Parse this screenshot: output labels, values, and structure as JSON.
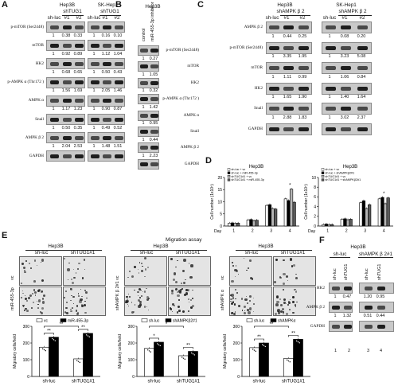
{
  "panels": {
    "A": {
      "letter": "A",
      "groups": [
        {
          "cell": "Hep3B",
          "treat": "shTUG1",
          "lanes": [
            "sh-luc",
            "#1",
            "#2"
          ]
        },
        {
          "cell": "SK-Hep1",
          "treat": "shTUG1",
          "lanes": [
            "sh-luc",
            "#1",
            "#2"
          ]
        }
      ],
      "rows": [
        {
          "label": "p-mTOR (Ser2448)",
          "vals": [
            "1",
            "0.38",
            "0.33",
            "1",
            "0.16",
            "0.10"
          ]
        },
        {
          "label": "mTOR",
          "vals": [
            "1",
            "0.92",
            "0.89",
            "1",
            "1.12",
            "1.04"
          ]
        },
        {
          "label": "HK2",
          "vals": [
            "1",
            "0.68",
            "0.65",
            "1",
            "0.50",
            "0.43"
          ]
        },
        {
          "label": "p-AMPK α (Thr172 )",
          "vals": [
            "1",
            "1.56",
            "1.69",
            "1",
            "2.05",
            "1.46"
          ]
        },
        {
          "label": "AMPK α",
          "vals": [
            "1",
            "1.17",
            "1.23",
            "1",
            "0.90",
            "0.87"
          ]
        },
        {
          "label": "Snail",
          "vals": [
            "1",
            "0.50",
            "0.35",
            "1",
            "0.49",
            "0.52"
          ]
        },
        {
          "label": "AMPK β 2",
          "vals": [
            "1",
            "2.04",
            "2.53",
            "1",
            "1.48",
            "1.51"
          ]
        },
        {
          "label": "GAPDH",
          "vals": []
        }
      ]
    },
    "B": {
      "letter": "B",
      "cell": "Hep3B",
      "lanes": [
        "control",
        "miR-455-3p inhibitor"
      ],
      "rows": [
        {
          "label": "p-mTOR (Ser2448)",
          "vals": [
            "1",
            "0.27"
          ]
        },
        {
          "label": "mTOR",
          "vals": [
            "1",
            "1.05"
          ]
        },
        {
          "label": "HK2",
          "vals": [
            "1",
            "0.32"
          ]
        },
        {
          "label": "p-AMPK α (Thr172 )",
          "vals": [
            "1",
            "1.42"
          ]
        },
        {
          "label": "AMPK α",
          "vals": [
            "1",
            "0.95"
          ]
        },
        {
          "label": "Snail",
          "vals": [
            "1",
            "0.44"
          ]
        },
        {
          "label": "AMPK β 2",
          "vals": [
            "1",
            "2.23"
          ]
        },
        {
          "label": "GAPDH",
          "vals": []
        }
      ]
    },
    "C": {
      "letter": "C",
      "groups": [
        {
          "cell": "Hep3B",
          "treat": "shAMPK β 2",
          "lanes": [
            "sh-luc",
            "#1",
            "#2"
          ]
        },
        {
          "cell": "SK-Hep1",
          "treat": "shAMPK β 2",
          "lanes": [
            "sh-luc",
            "#1",
            "#2"
          ]
        }
      ],
      "rows": [
        {
          "label": "AMPK β 2",
          "vals": [
            "1",
            "0.44",
            "0.25",
            "1",
            "0.08",
            "0.20"
          ]
        },
        {
          "label": "p-mTOR (Ser2448)",
          "vals": [
            "1",
            "3.35",
            "1.95",
            "1",
            "3.23",
            "5.08"
          ]
        },
        {
          "label": "mTOR",
          "vals": [
            "1",
            "1.11",
            "0.99",
            "1",
            "1.06",
            "0.84"
          ]
        },
        {
          "label": "HK2",
          "vals": [
            "1",
            "1.65",
            "1.90",
            "1",
            "1.40",
            "1.64"
          ]
        },
        {
          "label": "Snail",
          "vals": [
            "1",
            "2.88",
            "1.83",
            "1",
            "3.02",
            "2.37"
          ]
        },
        {
          "label": "GAPDH",
          "vals": []
        }
      ]
    },
    "D": {
      "letter": "D",
      "charts": [
        {
          "title": "Hep3B",
          "ylabel": "Cell number (1x10⁵)",
          "xlabel": "Day",
          "categories": [
            "1",
            "2",
            "3",
            "4"
          ],
          "yticks": [
            "0",
            "5",
            "10",
            "15",
            "20"
          ],
          "ylim": [
            0,
            20
          ],
          "series": [
            {
              "name": "sh-luc + vc",
              "values": [
                1.2,
                2.5,
                8.5,
                11.2
              ],
              "color": "#ffffff"
            },
            {
              "name": "sh-luc + miR-455-3p",
              "values": [
                1.3,
                2.7,
                8.8,
                10.5
              ],
              "color": "#000000"
            },
            {
              "name": "shTUG1#1 + vc",
              "values": [
                1.1,
                2.2,
                7.2,
                15.2
              ],
              "color": "#b5b5b5"
            },
            {
              "name": "shTUG1#1 + miR-455-3p",
              "values": [
                1.2,
                2.4,
                7.0,
                9.8
              ],
              "color": "#5a5a5a"
            }
          ]
        },
        {
          "title": "Hep3B",
          "ylabel": "Cell number (1x10⁵)",
          "xlabel": "Day",
          "categories": [
            "1",
            "2",
            "3",
            "4"
          ],
          "yticks": [
            "0",
            "2",
            "4",
            "6",
            "8",
            "10"
          ],
          "ylim": [
            0,
            10
          ],
          "series": [
            {
              "name": "sh-luc + vc",
              "values": [
                0.3,
                1.4,
                4.8,
                5.6
              ],
              "color": "#ffffff"
            },
            {
              "name": "sh-luc + shAMPKβ2#1",
              "values": [
                0.4,
                1.5,
                5.2,
                5.9
              ],
              "color": "#000000"
            },
            {
              "name": "shTUG1#1 + vc",
              "values": [
                0.3,
                1.3,
                3.6,
                4.6
              ],
              "color": "#b5b5b5"
            },
            {
              "name": "shTUG1#1 + shAMPKβ2#1",
              "values": [
                0.3,
                1.4,
                4.4,
                5.8
              ],
              "color": "#5a5a5a"
            }
          ]
        }
      ]
    },
    "E": {
      "letter": "E",
      "title": "Migration assay",
      "assays": [
        {
          "cell": "Hep3B",
          "cols": [
            "sh-luc",
            "shTUG1#1"
          ],
          "rows": [
            "vc",
            "miR-455-3p"
          ],
          "ylabel": "Migratory cells/field",
          "yticks": [
            "0",
            "100",
            "200",
            "300"
          ],
          "ylim": [
            0,
            300
          ],
          "legend": [
            "vc",
            "miR-455-3p"
          ],
          "categories": [
            "sh-luc",
            "shTUG1#1"
          ],
          "series": [
            {
              "name": "vc",
              "values": [
                175,
                105
              ],
              "color": "#ffffff"
            },
            {
              "name": "miR-455-3p",
              "values": [
                235,
                258
              ],
              "color": "#000000"
            }
          ],
          "sig": [
            "**",
            "**",
            "**"
          ]
        },
        {
          "cell": "Hep3B",
          "cols": [
            "sh-luc",
            "shTUG1#1"
          ],
          "rows": [
            "vc",
            "shAMPK β 2#1"
          ],
          "ylabel": "Migratory cells/field",
          "yticks": [
            "0",
            "100",
            "200",
            "300"
          ],
          "ylim": [
            0,
            300
          ],
          "legend": [
            "sh-luc",
            "shAMPKβ2#1"
          ],
          "categories": [
            "sh-luc",
            "shTUG1#1"
          ],
          "series": [
            {
              "name": "sh-luc",
              "values": [
                168,
                124
              ],
              "color": "#ffffff"
            },
            {
              "name": "shAMPKβ2#1",
              "values": [
                205,
                150
              ],
              "color": "#000000"
            }
          ],
          "sig": [
            "*",
            "**",
            "*"
          ]
        },
        {
          "cell": "Hep3B",
          "cols": [
            "sh-luc",
            "shTUG1#1"
          ],
          "rows": [
            "vc",
            "shAMPK α"
          ],
          "ylabel": "Migratory cells/field",
          "yticks": [
            "0",
            "100",
            "200",
            "300"
          ],
          "ylim": [
            0,
            300
          ],
          "legend": [
            "sh-luc",
            "shAMPKα"
          ],
          "categories": [
            "sh-luc",
            "shTUG1#1"
          ],
          "series": [
            {
              "name": "sh-luc",
              "values": [
                172,
                108
              ],
              "color": "#ffffff"
            },
            {
              "name": "shAMPKα",
              "values": [
                200,
                222
              ],
              "color": "#000000"
            }
          ],
          "sig": [
            "**",
            "**",
            "**"
          ]
        }
      ]
    },
    "F": {
      "letter": "F",
      "cell": "Hep3B",
      "groups": [
        {
          "treat": "sh-luc",
          "lanes": [
            "sh-luc",
            "shTUG1"
          ]
        },
        {
          "treat": "shAMPK β 2#1",
          "lanes": [
            "sh-luc",
            "shTUG1"
          ]
        }
      ],
      "rows": [
        {
          "label": "HK2",
          "vals": [
            "1",
            "0.47",
            "1.20",
            "0.95"
          ]
        },
        {
          "label": "AMPK β 2",
          "vals": [
            "1",
            "1.32",
            "0.51",
            "0.44"
          ]
        },
        {
          "label": "GAPDH",
          "vals": []
        }
      ],
      "lane_numbers": [
        "1",
        "2",
        "3",
        "4"
      ]
    }
  },
  "chart_data": [
    {
      "type": "bar",
      "title": "Hep3B",
      "xlabel": "Day",
      "ylabel": "Cell number (1x10⁵)",
      "categories": [
        "1",
        "2",
        "3",
        "4"
      ],
      "ylim": [
        0,
        20
      ],
      "series": [
        {
          "name": "sh-luc + vc",
          "values": [
            1.2,
            2.5,
            8.5,
            11.2
          ]
        },
        {
          "name": "sh-luc + miR-455-3p",
          "values": [
            1.3,
            2.7,
            8.8,
            10.5
          ]
        },
        {
          "name": "shTUG1#1 + vc",
          "values": [
            1.1,
            2.2,
            7.2,
            15.2
          ]
        },
        {
          "name": "shTUG1#1 + miR-455-3p",
          "values": [
            1.2,
            2.4,
            7.0,
            9.8
          ]
        }
      ]
    },
    {
      "type": "bar",
      "title": "Hep3B",
      "xlabel": "Day",
      "ylabel": "Cell number (1x10⁵)",
      "categories": [
        "1",
        "2",
        "3",
        "4"
      ],
      "ylim": [
        0,
        10
      ],
      "series": [
        {
          "name": "sh-luc + vc",
          "values": [
            0.3,
            1.4,
            4.8,
            5.6
          ]
        },
        {
          "name": "sh-luc + shAMPKβ2#1",
          "values": [
            0.4,
            1.5,
            5.2,
            5.9
          ]
        },
        {
          "name": "shTUG1#1 + vc",
          "values": [
            0.3,
            1.3,
            3.6,
            4.6
          ]
        },
        {
          "name": "shTUG1#1 + shAMPKβ2#1",
          "values": [
            0.3,
            1.4,
            4.4,
            5.8
          ]
        }
      ]
    },
    {
      "type": "bar",
      "title": "",
      "ylabel": "Migratory cells/field",
      "categories": [
        "sh-luc",
        "shTUG1#1"
      ],
      "ylim": [
        0,
        300
      ],
      "series": [
        {
          "name": "vc",
          "values": [
            175,
            105
          ]
        },
        {
          "name": "miR-455-3p",
          "values": [
            235,
            258
          ]
        }
      ]
    },
    {
      "type": "bar",
      "title": "",
      "ylabel": "Migratory cells/field",
      "categories": [
        "sh-luc",
        "shTUG1#1"
      ],
      "ylim": [
        0,
        300
      ],
      "series": [
        {
          "name": "sh-luc",
          "values": [
            168,
            124
          ]
        },
        {
          "name": "shAMPKβ2#1",
          "values": [
            205,
            150
          ]
        }
      ]
    },
    {
      "type": "bar",
      "title": "",
      "ylabel": "Migratory cells/field",
      "categories": [
        "sh-luc",
        "shTUG1#1"
      ],
      "ylim": [
        0,
        300
      ],
      "series": [
        {
          "name": "sh-luc",
          "values": [
            172,
            108
          ]
        },
        {
          "name": "shAMPKα",
          "values": [
            200,
            222
          ]
        }
      ]
    }
  ]
}
